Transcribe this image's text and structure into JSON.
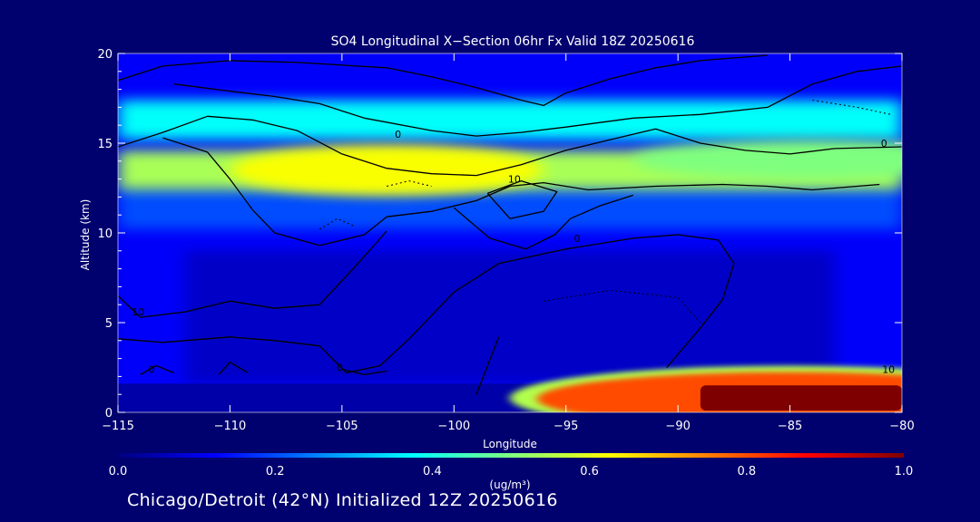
{
  "chart_data": {
    "type": "heatmap",
    "title": "SO4 Longitudinal X−Section 06hr  Fx Valid 18Z 20250616",
    "xlabel": "Longitude",
    "ylabel": "Altitude (km)",
    "xlim": [
      -115,
      -80
    ],
    "ylim": [
      0,
      20
    ],
    "x_ticks": [
      -115,
      -110,
      -105,
      -100,
      -95,
      -90,
      -85,
      -80
    ],
    "x_tick_labels": [
      "−115",
      "−110",
      "−105",
      "−100",
      "−95",
      "−90",
      "−85",
      "−80"
    ],
    "y_ticks": [
      0,
      5,
      10,
      15,
      20
    ],
    "y_tick_labels": [
      "0",
      "5",
      "10",
      "15",
      "20"
    ],
    "colorbar": {
      "label": "(ug/m³)",
      "range": [
        0.0,
        1.0
      ],
      "ticks": [
        0.0,
        0.2,
        0.4,
        0.6,
        0.8,
        1.0
      ],
      "tick_labels": [
        "0.0",
        "0.2",
        "0.4",
        "0.6",
        "0.8",
        "1.0"
      ],
      "colors": [
        "#00007f",
        "#0000ff",
        "#007fff",
        "#00ffff",
        "#7fff7f",
        "#ffff00",
        "#ff7f00",
        "#ff0000",
        "#7f0000"
      ]
    },
    "fields": {
      "background_concentration": 0.12,
      "upper_layer": {
        "alt_km": 13.5,
        "peak": 0.62,
        "note_lon_peak": -103
      },
      "second_layer": {
        "alt_km": 16.3,
        "peak": 0.38
      },
      "mid_layer": {
        "alt_km": 11.5,
        "peak": 0.22
      },
      "surface_plume": {
        "lon_range": [
          -89,
          -80
        ],
        "alt_range_km": [
          0,
          1.5
        ],
        "peak": 1.0
      }
    },
    "contour_labels": [
      {
        "text": "0",
        "lon": -102.5,
        "alt": 15.3
      },
      {
        "text": "10",
        "lon": -97.3,
        "alt": 12.8
      },
      {
        "text": "0",
        "lon": -80.8,
        "alt": 14.8
      },
      {
        "text": "10",
        "lon": -114.1,
        "alt": 5.4
      },
      {
        "text": "0",
        "lon": -113.5,
        "alt": 2.2
      },
      {
        "text": "0",
        "lon": -105.1,
        "alt": 2.3
      },
      {
        "text": "0",
        "lon": -94.5,
        "alt": 9.5
      },
      {
        "text": "10",
        "lon": -80.6,
        "alt": 2.2
      }
    ]
  },
  "footer": "Chicago/Detroit (42°N) Initialized 12Z 20250616",
  "colors": {
    "background": "#00006e",
    "contour": "#000000",
    "text": "#ffffff"
  }
}
